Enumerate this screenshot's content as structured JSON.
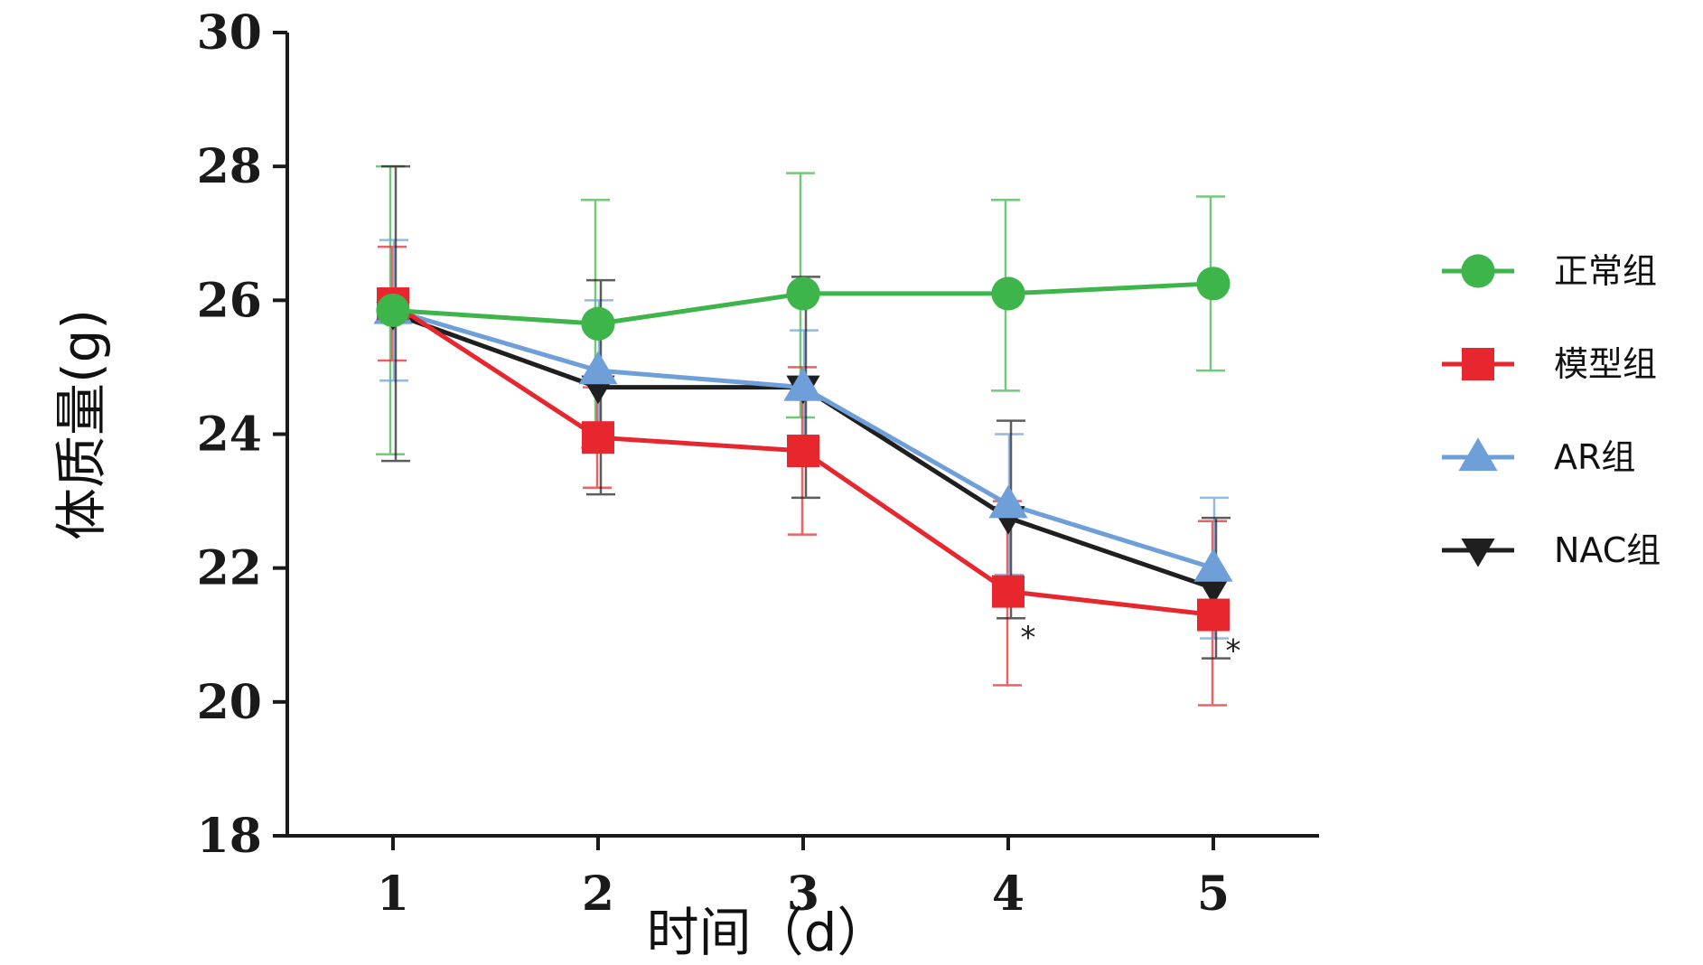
{
  "chart_data": {
    "type": "line",
    "title": "",
    "xlabel": "时间（d）",
    "ylabel": "体质量(g)",
    "x": [
      1,
      2,
      3,
      4,
      5
    ],
    "x_tick_labels": [
      "1",
      "2",
      "3",
      "4",
      "5"
    ],
    "ylim": [
      18,
      30
    ],
    "y_ticks": [
      18,
      20,
      22,
      24,
      26,
      28,
      30
    ],
    "y_tick_labels": [
      "18",
      "20",
      "22",
      "24",
      "26",
      "28",
      "30"
    ],
    "grid": false,
    "legend_position": "right",
    "series": [
      {
        "name": "正常组",
        "color": "#3db54a",
        "marker": "circle",
        "values": [
          25.85,
          25.65,
          26.1,
          26.1,
          26.25
        ],
        "err_upper": [
          28.0,
          27.5,
          27.9,
          27.5,
          27.55
        ],
        "err_lower": [
          23.7,
          23.8,
          24.25,
          24.65,
          24.95
        ]
      },
      {
        "name": "模型组",
        "color": "#e8262e",
        "marker": "square",
        "values": [
          25.95,
          23.95,
          23.75,
          21.65,
          21.3
        ],
        "err_upper": [
          26.8,
          24.7,
          25.0,
          23.0,
          22.7
        ],
        "err_lower": [
          25.1,
          23.2,
          22.5,
          20.25,
          19.95
        ]
      },
      {
        "name": "AR组",
        "color": "#6f9fd8",
        "marker": "triangle-up",
        "values": [
          25.85,
          24.95,
          24.7,
          22.95,
          22.0
        ],
        "err_upper": [
          26.9,
          26.0,
          25.55,
          24.0,
          23.05
        ],
        "err_lower": [
          24.8,
          23.9,
          23.85,
          21.9,
          20.95
        ]
      },
      {
        "name": "NAC组",
        "color": "#1f1f1f",
        "marker": "triangle-down",
        "values": [
          25.8,
          24.7,
          24.7,
          22.75,
          21.7
        ],
        "err_upper": [
          28.0,
          26.3,
          26.35,
          24.2,
          22.75
        ],
        "err_lower": [
          23.6,
          23.1,
          23.05,
          21.25,
          20.65
        ]
      }
    ],
    "annotations": [
      {
        "x": 4,
        "y": 21.0,
        "text": "*"
      },
      {
        "x": 5,
        "y": 20.8,
        "text": "*"
      }
    ]
  }
}
